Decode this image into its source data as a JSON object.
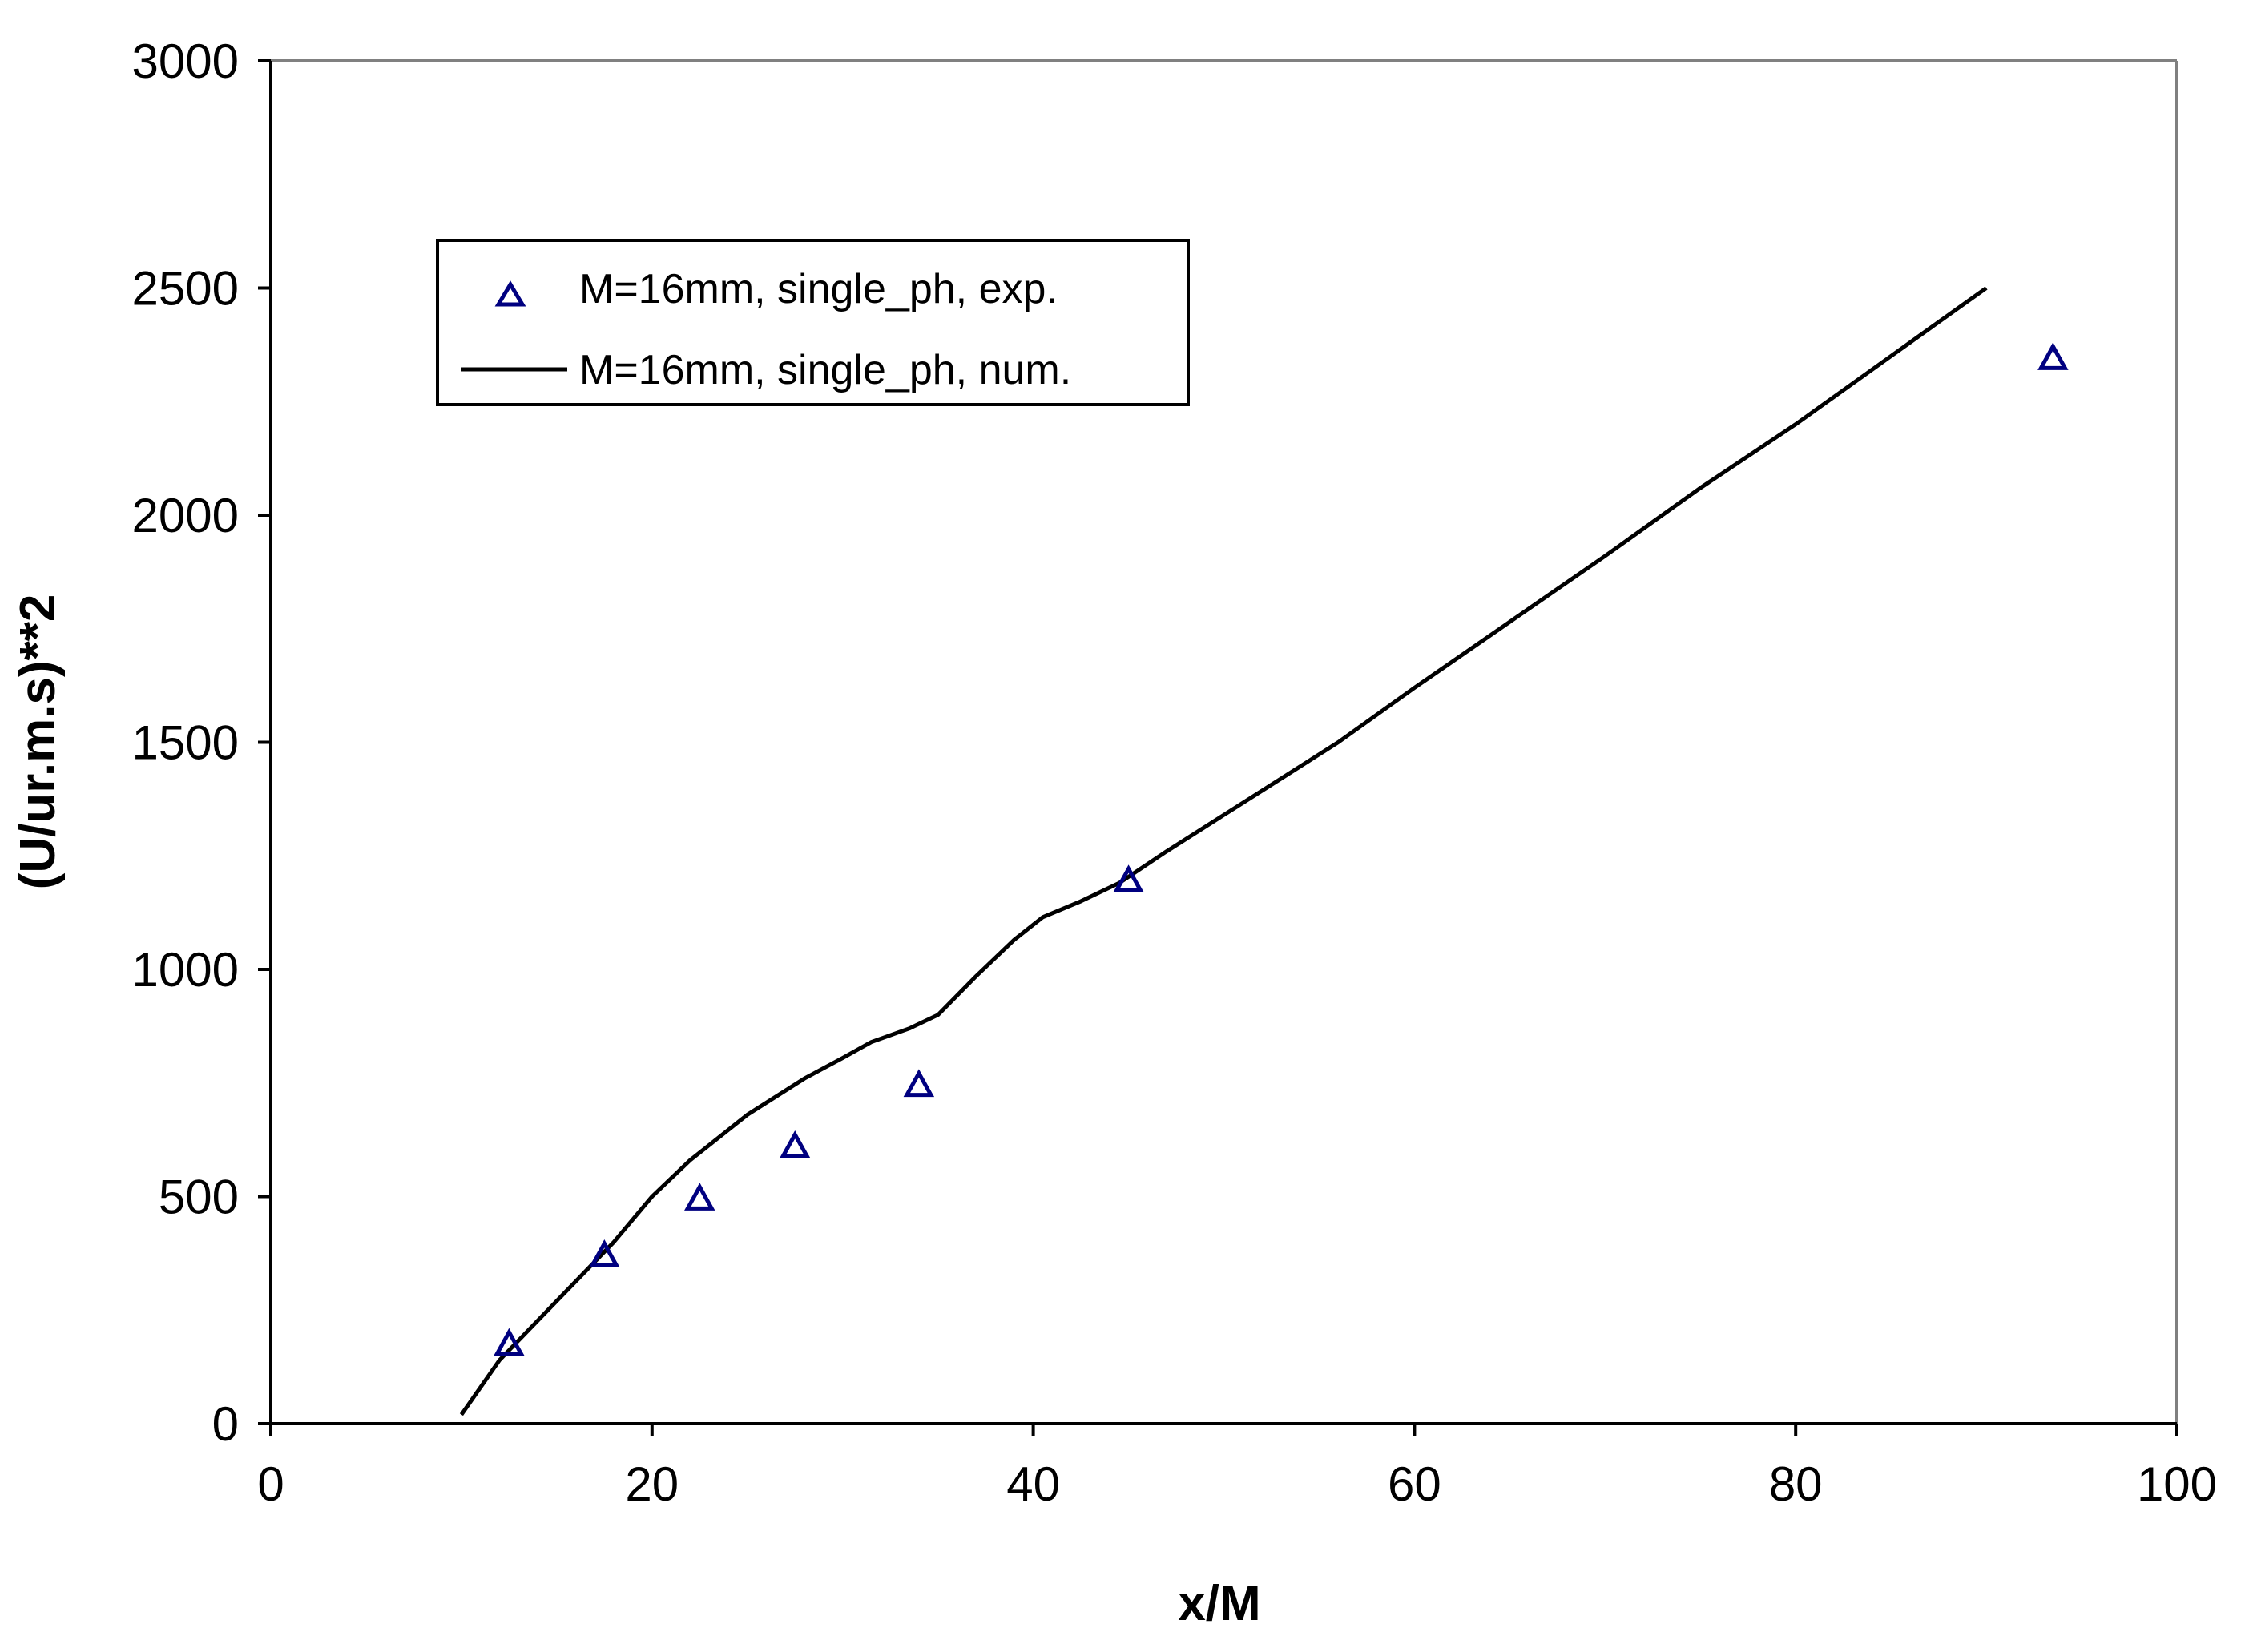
{
  "chart_data": {
    "type": "scatter",
    "title": "",
    "xlabel": "x/M",
    "ylabel": "(U/ur.m.s)**2",
    "xlim": [
      0,
      100
    ],
    "ylim": [
      0,
      3000
    ],
    "x_ticks": [
      "0",
      "20",
      "40",
      "60",
      "80",
      "100"
    ],
    "y_ticks": [
      "0",
      "500",
      "1000",
      "1500",
      "2000",
      "2500",
      "3000"
    ],
    "grid": false,
    "legend_position": "top-left",
    "series": [
      {
        "name": "M=16mm, single_ph, exp.",
        "kind": "scatter",
        "marker": "triangle-open",
        "color": "#000080",
        "x": [
          12.5,
          17.5,
          22.5,
          27.5,
          34.0,
          45.0,
          93.5
        ],
        "y": [
          175,
          370,
          495,
          610,
          745,
          1195,
          2345
        ]
      },
      {
        "name": "M=16mm, single_ph, num.",
        "kind": "line",
        "color": "#000000",
        "x": [
          10,
          12,
          15,
          18,
          20,
          22,
          25,
          28,
          30,
          31.5,
          33.5,
          35,
          37,
          39,
          40.5,
          42.5,
          44.5,
          47,
          50,
          53,
          56,
          60,
          65,
          70,
          75,
          80,
          85,
          90
        ],
        "y": [
          20,
          140,
          270,
          400,
          500,
          580,
          680,
          760,
          805,
          840,
          870,
          900,
          985,
          1065,
          1115,
          1150,
          1190,
          1260,
          1340,
          1420,
          1500,
          1620,
          1765,
          1910,
          2060,
          2200,
          2350,
          2500
        ]
      }
    ]
  }
}
